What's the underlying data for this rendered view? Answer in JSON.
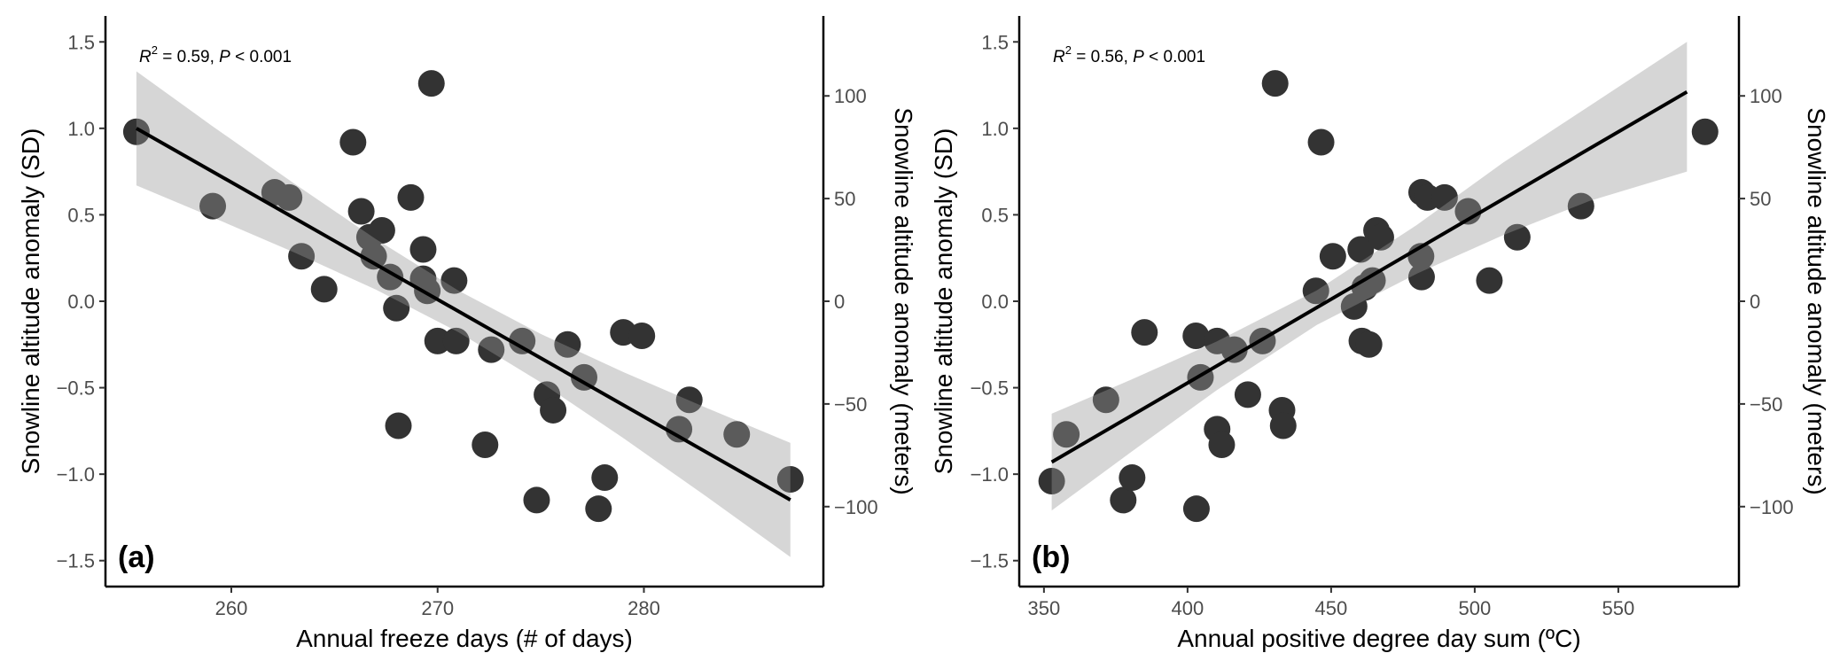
{
  "chart_data": [
    {
      "type": "scatter",
      "panel_label": "(a)",
      "xlabel": "Annual freeze days (# of days)",
      "ylabel": "Snowline altitude anomaly (SD)",
      "ylabel_right": "Snowline altitude anomaly (meters)",
      "annotation": {
        "r2_symbol": "R",
        "r2_sup": "2",
        "text": " = 0.59, ",
        "p_symbol": "P",
        "p_text": " < 0.001"
      },
      "xlim": [
        253.9,
        288.7
      ],
      "ylim": [
        -1.65,
        1.65
      ],
      "xticks": [
        260,
        270,
        280
      ],
      "yticks": [
        -1.5,
        -1.0,
        -0.5,
        0.0,
        0.5,
        1.0,
        1.5
      ],
      "ytick_labels": [
        "−1.5",
        "−1.0",
        "−0.5",
        "0.0",
        "0.5",
        "1.0",
        "1.5"
      ],
      "right_ticks": [
        -100,
        -50,
        0,
        50,
        100
      ],
      "right_tick_labels": [
        "−100",
        "−50",
        "0",
        "50",
        "100"
      ],
      "sd_to_meters": 84.2,
      "points": {
        "x": [
          255.4,
          259.1,
          262.1,
          262.8,
          263.4,
          264.5,
          265.9,
          266.3,
          268.7,
          269.7,
          266.7,
          267.3,
          266.9,
          267.7,
          268.0,
          269.3,
          269.3,
          269.5,
          270.8,
          270.0,
          270.9,
          272.6,
          268.1,
          272.3,
          274.1,
          276.3,
          277.1,
          279.0,
          279.9,
          275.3,
          275.6,
          274.8,
          278.1,
          277.8,
          281.7,
          282.2,
          284.5,
          287.1
        ],
        "y": [
          0.98,
          0.55,
          0.63,
          0.6,
          0.26,
          0.07,
          0.92,
          0.52,
          0.6,
          1.26,
          0.37,
          0.41,
          0.26,
          0.14,
          -0.04,
          0.3,
          0.13,
          0.06,
          0.12,
          -0.23,
          -0.23,
          -0.28,
          -0.72,
          -0.83,
          -0.23,
          -0.25,
          -0.44,
          -0.18,
          -0.2,
          -0.54,
          -0.63,
          -1.15,
          -1.02,
          -1.2,
          -0.74,
          -0.57,
          -0.77,
          -1.03
        ]
      },
      "fit": {
        "x": [
          255.4,
          287.1
        ],
        "y": [
          1.0,
          -1.149
        ]
      },
      "ribbon": {
        "x": [
          255.4,
          259,
          263,
          267,
          271,
          275,
          279,
          283,
          287.1
        ],
        "lower": [
          0.67,
          0.49,
          0.285,
          0.068,
          -0.178,
          -0.469,
          -0.791,
          -1.127,
          -1.479
        ],
        "upper": [
          1.33,
          1.02,
          0.685,
          0.36,
          0.062,
          -0.189,
          -0.409,
          -0.615,
          -0.819
        ]
      }
    },
    {
      "type": "scatter",
      "panel_label": "(b)",
      "xlabel": "Annual positive degree day sum (ºC)",
      "ylabel": "Snowline altitude anomaly (SD)",
      "ylabel_right": "Snowline altitude anomaly (meters)",
      "annotation": {
        "r2_symbol": "R",
        "r2_sup": "2",
        "text": " = 0.56, ",
        "p_symbol": "P",
        "p_text": " < 0.001"
      },
      "xlim": [
        341.4,
        592.0
      ],
      "ylim": [
        -1.65,
        1.65
      ],
      "xticks": [
        350,
        400,
        450,
        500,
        550
      ],
      "yticks": [
        -1.5,
        -1.0,
        -0.5,
        0.0,
        0.5,
        1.0,
        1.5
      ],
      "ytick_labels": [
        "−1.5",
        "−1.0",
        "−0.5",
        "0.0",
        "0.5",
        "1.0",
        "1.5"
      ],
      "right_ticks": [
        -100,
        -50,
        0,
        50,
        100
      ],
      "right_tick_labels": [
        "−100",
        "−50",
        "0",
        "50",
        "100"
      ],
      "sd_to_meters": 84.2,
      "points": {
        "x": [
          352.7,
          357.8,
          371.6,
          377.6,
          380.7,
          385.0,
          402.9,
          403.1,
          404.5,
          410.3,
          410.3,
          411.9,
          416.3,
          421.0,
          426.1,
          430.5,
          432.9,
          433.3,
          444.7,
          446.5,
          450.6,
          458.0,
          460.3,
          460.7,
          463.2,
          461.7,
          464.4,
          465.8,
          467.3,
          481.3,
          481.5,
          481.5,
          483.5,
          489.5,
          497.7,
          505.1,
          514.8,
          537.0,
          580.2
        ],
        "y": [
          -1.04,
          -0.77,
          -0.57,
          -1.15,
          -1.02,
          -0.18,
          -0.2,
          -1.2,
          -0.44,
          -0.23,
          -0.74,
          -0.83,
          -0.28,
          -0.54,
          -0.23,
          1.26,
          -0.63,
          -0.72,
          0.06,
          0.92,
          0.26,
          -0.03,
          0.3,
          -0.23,
          -0.25,
          0.08,
          0.12,
          0.41,
          0.37,
          0.26,
          0.14,
          0.63,
          0.6,
          0.6,
          0.52,
          0.12,
          0.37,
          0.55,
          0.98
        ]
      },
      "fit": {
        "x": [
          352.7,
          573.9
        ],
        "y": [
          -0.93,
          1.211
        ]
      },
      "ribbon": {
        "x": [
          352.7,
          380,
          410,
          445,
          480,
          510,
          540,
          573.9
        ],
        "lower": [
          -1.21,
          -0.876,
          -0.516,
          -0.137,
          0.161,
          0.383,
          0.58,
          0.75
        ],
        "upper": [
          -0.65,
          -0.456,
          -0.234,
          0.063,
          0.443,
          0.803,
          1.13,
          1.5
        ]
      }
    }
  ]
}
